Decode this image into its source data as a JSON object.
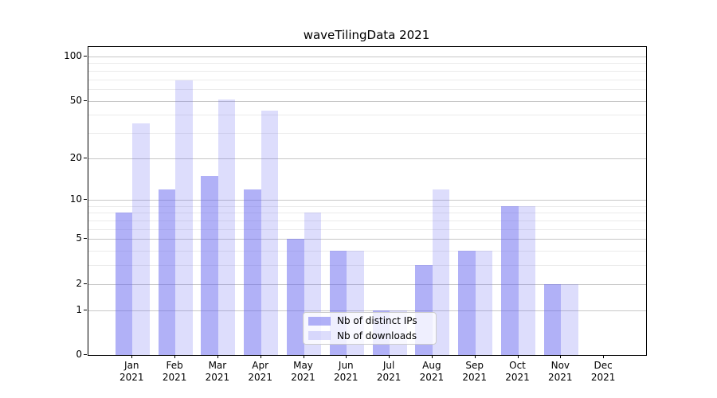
{
  "title": "waveTilingData 2021",
  "chart_data": {
    "type": "bar",
    "title": "waveTilingData 2021",
    "categories": [
      "Jan 2021",
      "Feb 2021",
      "Mar 2021",
      "Apr 2021",
      "May 2021",
      "Jun 2021",
      "Jul 2021",
      "Aug 2021",
      "Sep 2021",
      "Oct 2021",
      "Nov 2021",
      "Dec 2021"
    ],
    "x_tick_line1": [
      "Jan",
      "Feb",
      "Mar",
      "Apr",
      "May",
      "Jun",
      "Jul",
      "Aug",
      "Sep",
      "Oct",
      "Nov",
      "Dec"
    ],
    "x_tick_line2": [
      "2021",
      "2021",
      "2021",
      "2021",
      "2021",
      "2021",
      "2021",
      "2021",
      "2021",
      "2021",
      "2021",
      "2021"
    ],
    "series": [
      {
        "name": "Nb of distinct IPs",
        "color": "rgba(100,100,240,0.50)",
        "values": [
          8,
          12,
          15,
          12,
          5,
          4,
          1,
          3,
          4,
          9,
          2,
          0
        ]
      },
      {
        "name": "Nb of downloads",
        "color": "rgba(100,100,240,0.22)",
        "values": [
          35,
          69,
          51,
          43,
          8,
          4,
          1,
          12,
          4,
          9,
          2,
          0
        ]
      }
    ],
    "y_scale": "log10(value+1)",
    "y_major_ticks": [
      100,
      50,
      20,
      10,
      5,
      2,
      1,
      0
    ],
    "y_minor_gridlines": [
      3,
      4,
      6,
      7,
      8,
      9,
      30,
      40,
      60,
      70,
      80,
      90
    ],
    "ylim": [
      0,
      116
    ],
    "xlabel": "",
    "ylabel": "",
    "grid": true,
    "legend_position": "lower center"
  },
  "colors": {
    "bar_distinct_ips": "rgba(100,100,240,0.50)",
    "bar_downloads": "rgba(100,100,240,0.22)",
    "grid_major": "#c7c7c7",
    "grid_minor": "#ebebeb",
    "axis": "#000000",
    "legend_border": "#cccccc"
  },
  "legend": {
    "items": [
      {
        "label": "Nb of distinct IPs"
      },
      {
        "label": "Nb of downloads"
      }
    ]
  }
}
